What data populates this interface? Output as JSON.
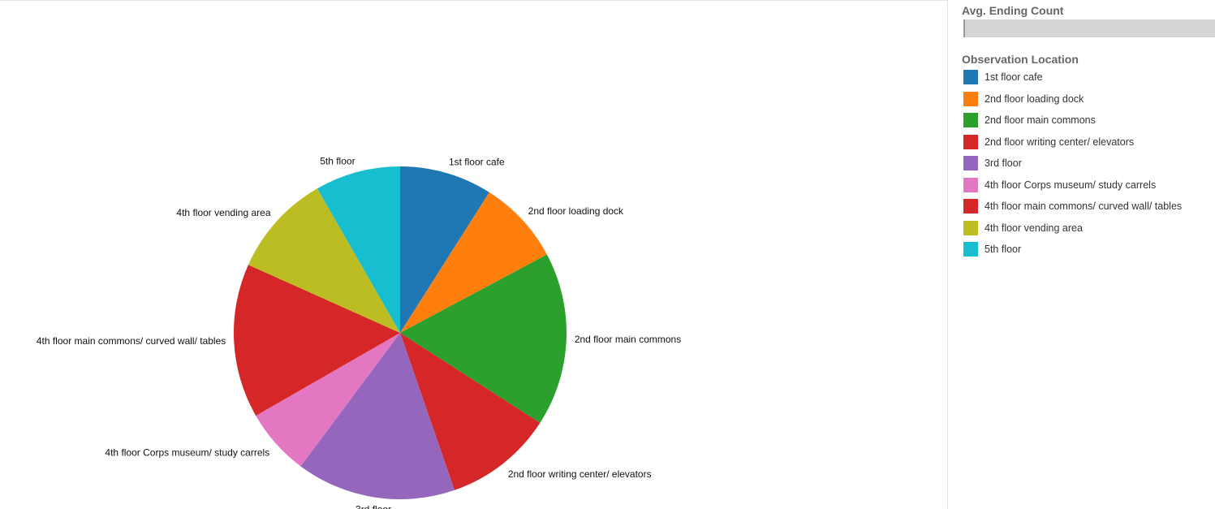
{
  "chart_data": {
    "type": "pie",
    "categories": [
      "1st floor cafe",
      "2nd floor loading dock",
      "2nd floor main commons",
      "2nd floor writing center/ elevators",
      "3rd floor",
      "4th floor Corps museum/ study carrels",
      "4th floor main commons/ curved wall/ tables",
      "4th floor vending area",
      "5th floor"
    ],
    "values": [
      9.0,
      8.2,
      16.9,
      10.6,
      15.5,
      6.5,
      15.0,
      10.0,
      8.3
    ],
    "colors": [
      "#1f77b4",
      "#ff7f0e",
      "#2ca02c",
      "#d62728",
      "#9467bd",
      "#e377c2",
      "#d62728",
      "#bcbd22",
      "#17becf"
    ],
    "start_angle_deg": 0,
    "direction": "clockwise",
    "legend_position": "right",
    "size_legend_title": "Avg. Ending Count",
    "color_legend_title": "Observation Location"
  }
}
